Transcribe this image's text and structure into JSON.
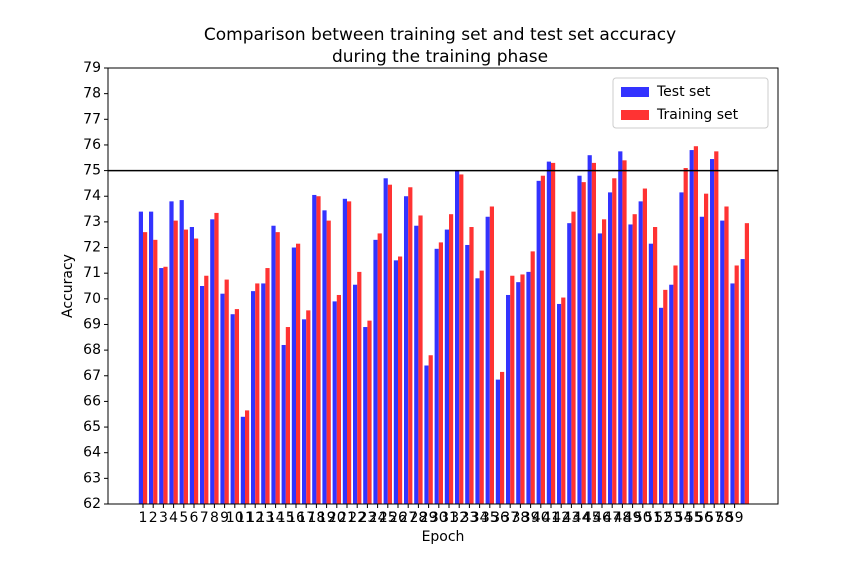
{
  "chart_data": {
    "type": "bar",
    "title": [
      "Comparison between training set and test set accuracy",
      "during the training phase"
    ],
    "xlabel": "Epoch",
    "ylabel": "Accuracy",
    "categories": [
      1,
      2,
      3,
      4,
      5,
      6,
      7,
      8,
      9,
      10,
      11,
      12,
      13,
      14,
      15,
      16,
      17,
      18,
      19,
      20,
      21,
      22,
      23,
      24,
      25,
      26,
      27,
      28,
      29,
      30,
      31,
      32,
      33,
      34,
      35,
      36,
      37,
      38,
      39,
      40,
      41,
      42,
      43,
      44,
      45,
      46,
      47,
      48,
      49,
      50,
      51,
      52,
      53,
      54,
      55,
      56,
      57,
      58,
      59,
      null
    ],
    "series": [
      {
        "name": "Test set",
        "color": "#3333ff",
        "values": [
          73.4,
          73.4,
          71.2,
          73.8,
          73.85,
          72.8,
          70.5,
          73.1,
          70.2,
          69.4,
          65.4,
          70.3,
          70.6,
          72.85,
          68.2,
          72.0,
          69.2,
          74.05,
          73.45,
          69.9,
          73.9,
          70.55,
          68.9,
          72.3,
          74.7,
          71.5,
          74.0,
          72.85,
          67.4,
          71.95,
          72.7,
          75.0,
          72.1,
          70.8,
          73.2,
          66.85,
          70.15,
          70.65,
          71.05,
          74.6,
          75.35,
          69.8,
          72.95,
          74.8,
          75.6,
          72.55,
          74.15,
          75.75,
          72.9,
          73.8,
          72.15,
          69.65,
          70.55,
          74.15,
          75.8,
          73.2,
          75.45,
          73.05,
          70.6,
          71.55
        ]
      },
      {
        "name": "Training set",
        "color": "#ff3333",
        "values": [
          72.6,
          72.3,
          71.25,
          73.05,
          72.7,
          72.35,
          70.9,
          73.35,
          70.75,
          69.6,
          65.65,
          70.6,
          71.2,
          72.6,
          68.9,
          72.15,
          69.55,
          74.0,
          73.05,
          70.15,
          73.8,
          71.05,
          69.15,
          72.55,
          74.45,
          71.65,
          74.35,
          73.25,
          67.8,
          72.2,
          73.3,
          74.85,
          72.8,
          71.1,
          73.6,
          67.15,
          70.9,
          70.95,
          71.85,
          74.8,
          75.3,
          70.05,
          73.4,
          74.55,
          75.3,
          73.1,
          74.7,
          75.4,
          73.3,
          74.3,
          72.8,
          70.35,
          71.3,
          75.1,
          75.95,
          74.1,
          75.75,
          73.6,
          71.3,
          72.95
        ]
      }
    ],
    "ylim": [
      62,
      79
    ],
    "yticks": [
      62,
      63,
      64,
      65,
      66,
      67,
      68,
      69,
      70,
      71,
      72,
      73,
      74,
      75,
      76,
      77,
      78,
      79
    ],
    "reference_line": 75,
    "reference_line_color": "#000000",
    "legend": "upper right"
  }
}
